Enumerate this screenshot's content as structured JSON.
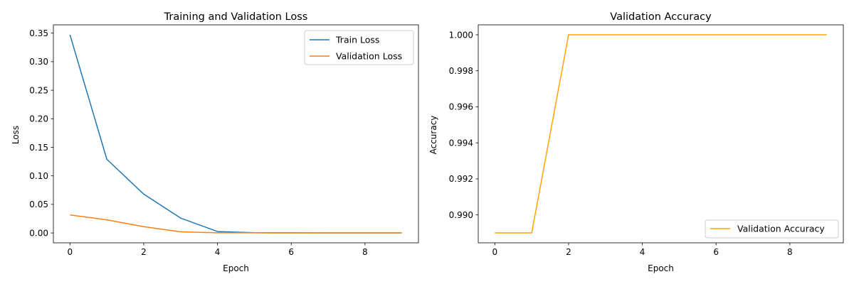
{
  "chart_data": [
    {
      "type": "line",
      "title": "Training and Validation Loss",
      "xlabel": "Epoch",
      "ylabel": "Loss",
      "x": [
        0,
        1,
        2,
        3,
        4,
        5,
        6,
        7,
        8,
        9
      ],
      "xlim": [
        -0.45,
        9.45
      ],
      "ylim": [
        -0.0173,
        0.3645
      ],
      "xticks": [
        0,
        2,
        4,
        6,
        8
      ],
      "xtick_labels": [
        "0",
        "2",
        "4",
        "6",
        "8"
      ],
      "yticks": [
        0.0,
        0.05,
        0.1,
        0.15,
        0.2,
        0.25,
        0.3,
        0.35
      ],
      "ytick_labels": [
        "0.00",
        "0.05",
        "0.10",
        "0.15",
        "0.20",
        "0.25",
        "0.30",
        "0.35"
      ],
      "grid": false,
      "legend_position": "top-right",
      "series": [
        {
          "name": "Train Loss",
          "color": "#1f77b4",
          "values": [
            0.347,
            0.129,
            0.068,
            0.026,
            0.0025,
            0.0004,
            0.0002,
            0.0001,
            0.0001,
            0.0001
          ]
        },
        {
          "name": "Validation Loss",
          "color": "#ff7f0e",
          "values": [
            0.0315,
            0.023,
            0.011,
            0.002,
            0.0003,
            0.0002,
            0.0001,
            0.0001,
            0.0001,
            0.0001
          ]
        }
      ]
    },
    {
      "type": "line",
      "title": "Validation Accuracy",
      "xlabel": "Epoch",
      "ylabel": "Accuracy",
      "x": [
        0,
        1,
        2,
        3,
        4,
        5,
        6,
        7,
        8,
        9
      ],
      "xlim": [
        -0.45,
        9.45
      ],
      "ylim": [
        0.98845,
        1.00055
      ],
      "xticks": [
        0,
        2,
        4,
        6,
        8
      ],
      "xtick_labels": [
        "0",
        "2",
        "4",
        "6",
        "8"
      ],
      "yticks": [
        0.99,
        0.992,
        0.994,
        0.996,
        0.998,
        1.0
      ],
      "ytick_labels": [
        "0.990",
        "0.992",
        "0.994",
        "0.996",
        "0.998",
        "1.000"
      ],
      "grid": false,
      "legend_position": "bottom-right",
      "series": [
        {
          "name": "Validation Accuracy",
          "color": "#ffa500",
          "values": [
            0.989,
            0.989,
            1.0,
            1.0,
            1.0,
            1.0,
            1.0,
            1.0,
            1.0,
            1.0
          ]
        }
      ]
    }
  ]
}
